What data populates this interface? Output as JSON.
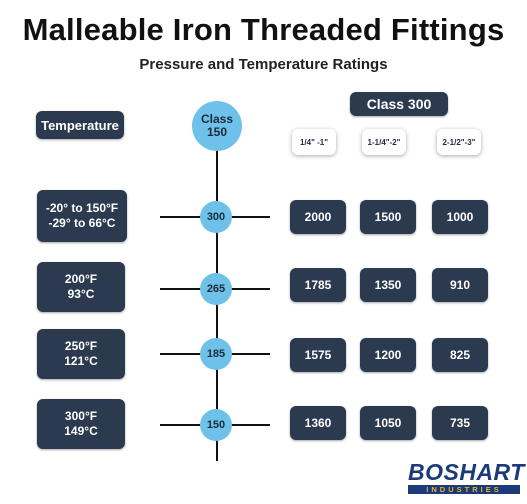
{
  "title": "Malleable Iron Threaded Fittings",
  "subtitle": "Pressure and Temperature Ratings",
  "temperature_header": "Temperature",
  "class150_header": "Class\n150",
  "class300_header": "Class 300",
  "size_headers": [
    "1/4\" -1\"",
    "1-1/4\"-2\"",
    "2-1/2\"-3\""
  ],
  "rows": [
    {
      "temperature": "-20° to 150°F\n-29° to 66°C",
      "class150": "300",
      "class300": [
        "2000",
        "1500",
        "1000"
      ]
    },
    {
      "temperature": "200°F\n93°C",
      "class150": "265",
      "class300": [
        "1785",
        "1350",
        "910"
      ]
    },
    {
      "temperature": "250°F\n121°C",
      "class150": "185",
      "class300": [
        "1575",
        "1200",
        "825"
      ]
    },
    {
      "temperature": "300°F\n149°C",
      "class150": "150",
      "class300": [
        "1360",
        "1050",
        "735"
      ]
    }
  ],
  "logo": {
    "name": "BOSHART",
    "tagline": "INDUSTRIES"
  },
  "colors": {
    "dark_box": "#2b3a4e",
    "circle": "#6ec2ea",
    "logo_blue": "#1c3a7a",
    "logo_gold": "#e8b51e"
  }
}
